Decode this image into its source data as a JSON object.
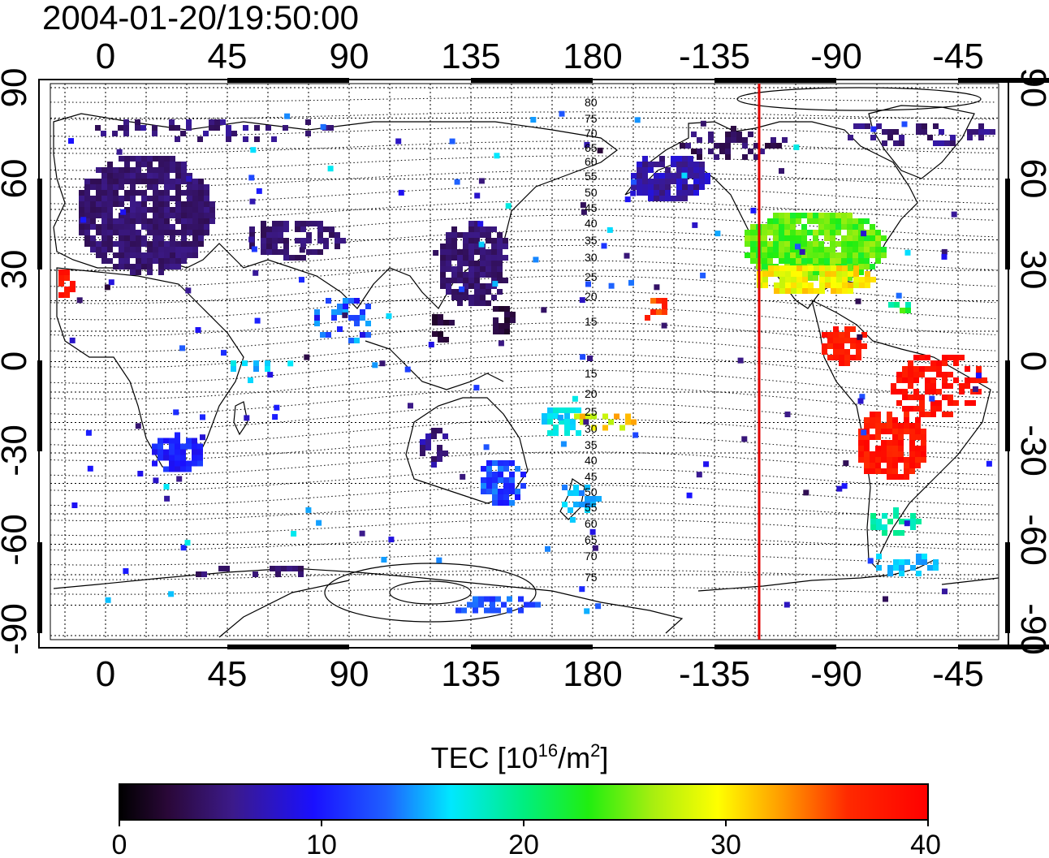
{
  "title": "2004-01-20/19:50:00",
  "map": {
    "lon_ticks_top": [
      "0",
      "45",
      "90",
      "135",
      "180",
      "-135",
      "-90",
      "-45"
    ],
    "lon_ticks_bottom": [
      "0",
      "45",
      "90",
      "135",
      "180",
      "-135",
      "-90",
      "-45"
    ],
    "lat_ticks_left": [
      "90",
      "60",
      "30",
      "0",
      "-30",
      "-60",
      "-90"
    ],
    "lat_ticks_right": [
      "90",
      "60",
      "30",
      "0",
      "-30",
      "-60",
      "-90"
    ],
    "magnetic_lat_labels_north": [
      "80",
      "75",
      "70",
      "65",
      "60",
      "55",
      "50",
      "45",
      "40",
      "35",
      "30",
      "25",
      "20",
      "15"
    ],
    "magnetic_lat_labels_south": [
      "15",
      "20",
      "25",
      "30",
      "35",
      "40",
      "45",
      "50",
      "55",
      "60",
      "65",
      "70",
      "75"
    ],
    "terminator_color": "#e00000"
  },
  "colorbar": {
    "label_main": "TEC  [10",
    "label_exp1": "16",
    "label_mid": "/m",
    "label_exp2": "2",
    "label_end": "]",
    "ticks": [
      "0",
      "10",
      "20",
      "30",
      "40"
    ],
    "range": [
      0,
      40
    ]
  }
}
